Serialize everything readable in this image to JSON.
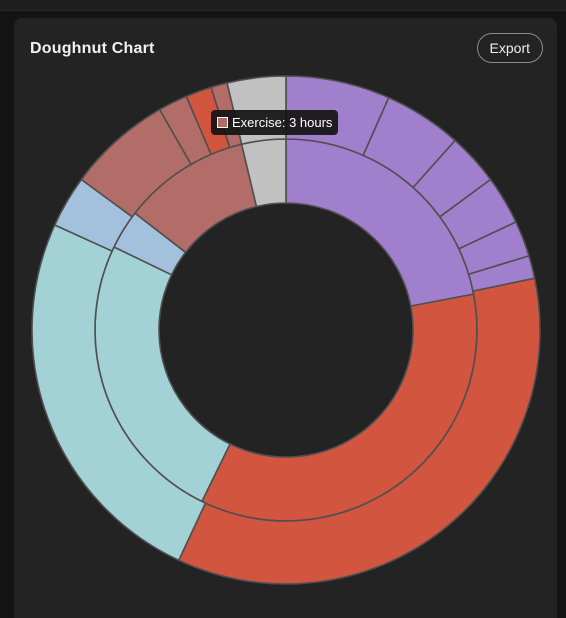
{
  "card": {
    "title": "Doughnut Chart",
    "export_label": "Export"
  },
  "tooltip": {
    "text": "Exercise: 3 hours",
    "color": "#b36d68"
  },
  "colors": {
    "purple": "#a07fcd",
    "red": "#d25540",
    "teal": "#a2d1d6",
    "blue": "#a3c1dc",
    "rose": "#b36d68",
    "gray": "#c1c1c1",
    "border": "#4f4f4f"
  },
  "chart_data": {
    "type": "doughnut",
    "unit": "hours",
    "inner_ring": [
      {
        "value": 5.3,
        "color": "#a07fcd"
      },
      {
        "value": 8.5,
        "color": "#d25540"
      },
      {
        "value": 6.0,
        "color": "#a2d1d6"
      },
      {
        "value": 0.8,
        "color": "#a3c1dc"
      },
      {
        "value": 2.6,
        "color": "#b36d68"
      },
      {
        "value": 0.9,
        "color": "#c1c1c1"
      }
    ],
    "outer_ring": [
      {
        "value": 1.6,
        "color": "#a07fcd"
      },
      {
        "value": 1.2,
        "color": "#a07fcd"
      },
      {
        "value": 0.8,
        "color": "#a07fcd"
      },
      {
        "value": 0.75,
        "color": "#a07fcd"
      },
      {
        "value": 0.55,
        "color": "#a07fcd"
      },
      {
        "value": 0.35,
        "color": "#a07fcd"
      },
      {
        "value": 8.5,
        "color": "#d25540"
      },
      {
        "value": 6.0,
        "color": "#a2d1d6"
      },
      {
        "value": 0.8,
        "color": "#a3c1dc"
      },
      {
        "value": 1.6,
        "color": "#b36d68"
      },
      {
        "value": 0.45,
        "color": "#b36d68"
      },
      {
        "value": 0.4,
        "color": "#d25540"
      },
      {
        "value": 0.25,
        "color": "#b36d68"
      },
      {
        "value": 0.9,
        "color": "#c1c1c1"
      }
    ]
  }
}
